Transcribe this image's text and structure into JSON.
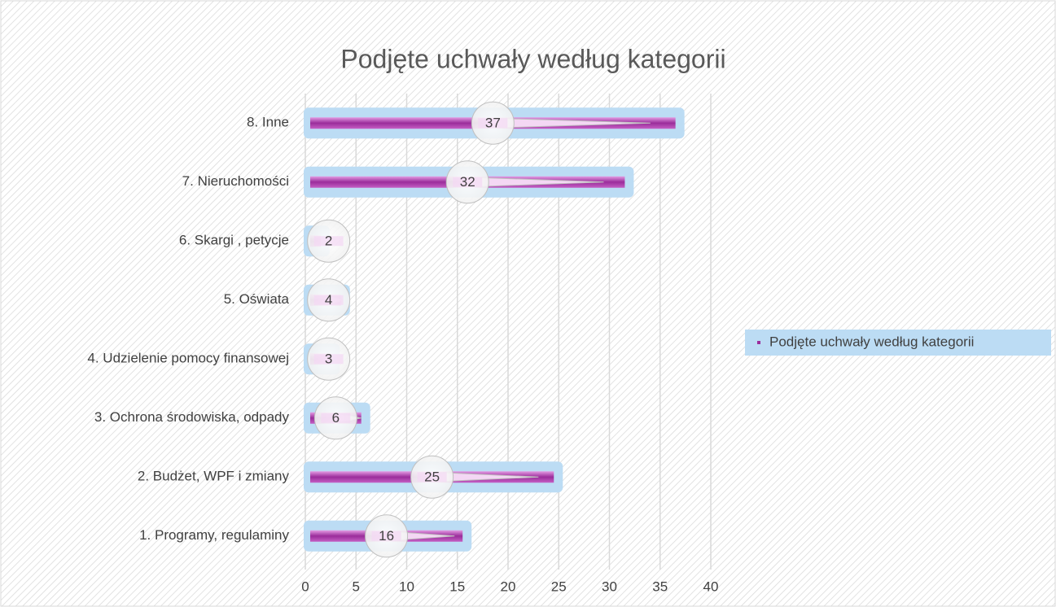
{
  "chart_data": {
    "type": "bar",
    "orientation": "horizontal",
    "title": "Podjęte uchwały według kategorii",
    "categories": [
      "1. Programy, regulaminy",
      "2. Budżet, WPF i zmiany",
      "3. Ochrona środowiska, odpady",
      "4. Udzielenie pomocy finansowej",
      "5. Oświata",
      "6. Skargi , petycje",
      "7. Nieruchomości",
      "8. Inne"
    ],
    "series": [
      {
        "name": "Podjęte uchwały według kategorii",
        "color": "#9b2d9b",
        "values": [
          16,
          25,
          6,
          3,
          4,
          2,
          32,
          37
        ]
      }
    ],
    "xlim": [
      0,
      40
    ],
    "xticks": [
      0,
      5,
      10,
      15,
      20,
      25,
      30,
      35,
      40
    ],
    "grid": true,
    "legend": "right"
  }
}
